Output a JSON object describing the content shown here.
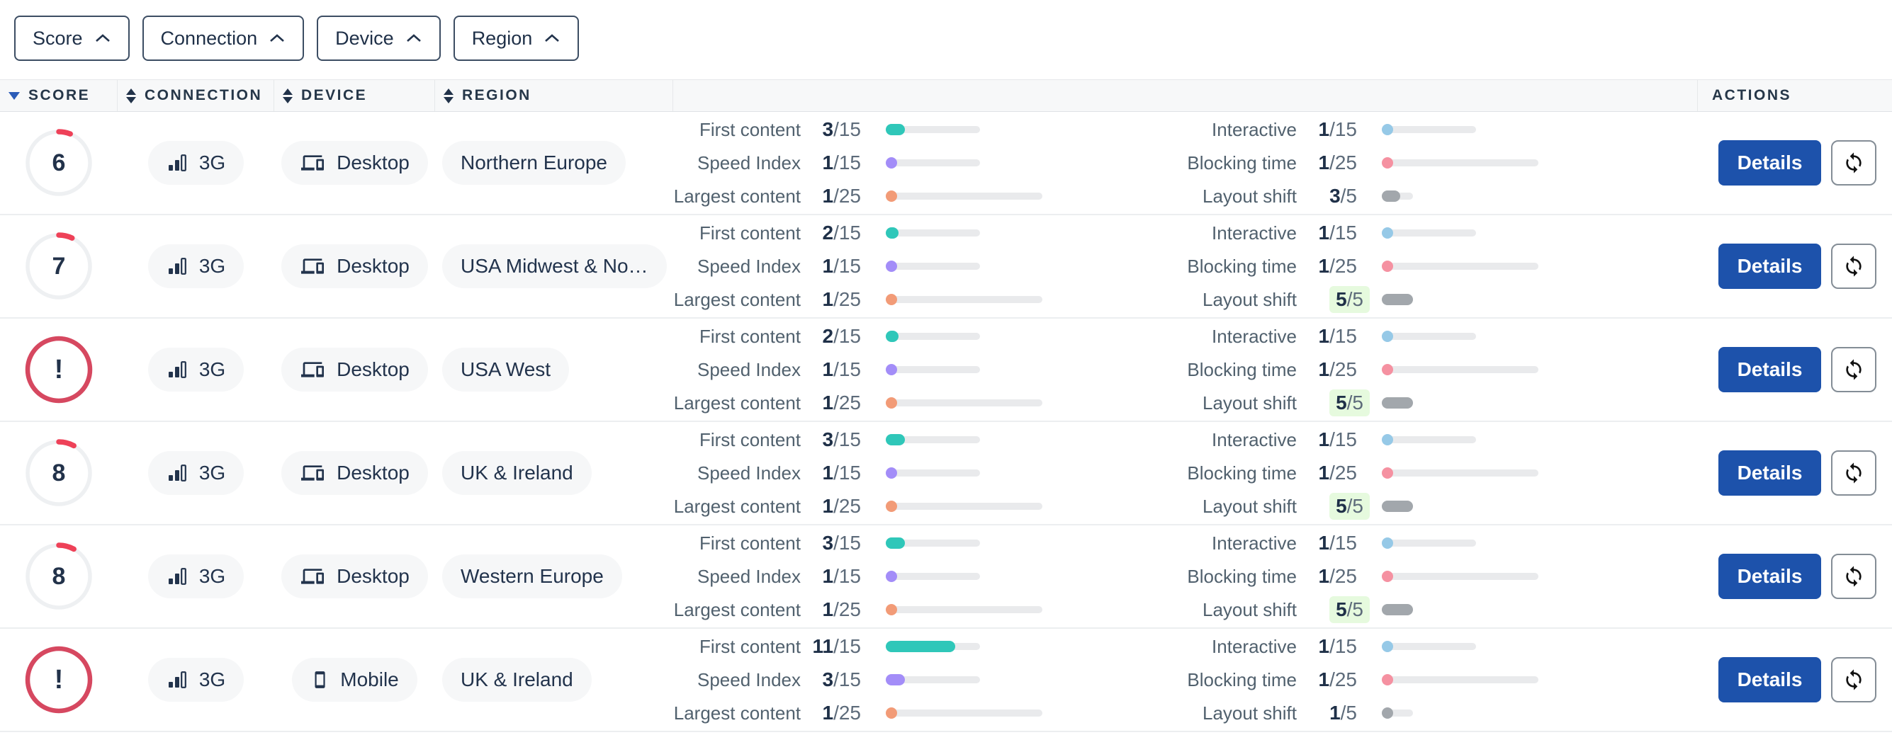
{
  "filters": {
    "items": [
      {
        "label": "Score",
        "icon": "chevron-up-icon"
      },
      {
        "label": "Connection",
        "icon": "chevron-up-icon"
      },
      {
        "label": "Device",
        "icon": "chevron-up-icon"
      },
      {
        "label": "Region",
        "icon": "chevron-up-icon"
      }
    ]
  },
  "header": {
    "score": {
      "label": "SCORE",
      "sort": "desc"
    },
    "connection": {
      "label": "CONNECTION",
      "sort": "both"
    },
    "device": {
      "label": "DEVICE",
      "sort": "both"
    },
    "region": {
      "label": "REGION",
      "sort": "both"
    },
    "actions": {
      "label": "ACTIONS"
    }
  },
  "actions": {
    "details_label": "Details",
    "refresh_icon": "sync-icon"
  },
  "colors": {
    "accent_blue": "#1d52ab",
    "score_arc": "#ee4158",
    "alert_ring": "#d64860",
    "score_track": "#eef0f2",
    "sort_active": "#2b5cb8",
    "badge_green_bg": "#e6fade",
    "bar_track": "#e9eaec",
    "teal": "#2fc7b9",
    "purple": "#a38df8",
    "salmon": "#f29b77",
    "light_blue": "#96c9e7",
    "pink": "#f591a1",
    "gray": "#a2a7ac"
  },
  "rows": [
    {
      "score": {
        "display": "6",
        "status": "score",
        "percent": 6
      },
      "connection": {
        "icon": "signal-bars-icon",
        "label": "3G"
      },
      "device": {
        "icon": "desktop-icon",
        "label": "Desktop"
      },
      "region": {
        "label": "Northern Europe"
      },
      "metrics_left": [
        {
          "label": "First content",
          "value": 3,
          "max": 15,
          "color": "#2fc7b9"
        },
        {
          "label": "Speed Index",
          "value": 1,
          "max": 15,
          "color": "#a38df8"
        },
        {
          "label": "Largest content",
          "value": 1,
          "max": 25,
          "color": "#f29b77"
        }
      ],
      "metrics_right": [
        {
          "label": "Interactive",
          "value": 1,
          "max": 15,
          "color": "#96c9e7"
        },
        {
          "label": "Blocking time",
          "value": 1,
          "max": 25,
          "color": "#f591a1"
        },
        {
          "label": "Layout shift",
          "value": 3,
          "max": 5,
          "color": "#a2a7ac",
          "highlight": false
        }
      ]
    },
    {
      "score": {
        "display": "7",
        "status": "score",
        "percent": 7
      },
      "connection": {
        "icon": "signal-bars-icon",
        "label": "3G"
      },
      "device": {
        "icon": "desktop-icon",
        "label": "Desktop"
      },
      "region": {
        "label": "USA Midwest & No…"
      },
      "metrics_left": [
        {
          "label": "First content",
          "value": 2,
          "max": 15,
          "color": "#2fc7b9"
        },
        {
          "label": "Speed Index",
          "value": 1,
          "max": 15,
          "color": "#a38df8"
        },
        {
          "label": "Largest content",
          "value": 1,
          "max": 25,
          "color": "#f29b77"
        }
      ],
      "metrics_right": [
        {
          "label": "Interactive",
          "value": 1,
          "max": 15,
          "color": "#96c9e7"
        },
        {
          "label": "Blocking time",
          "value": 1,
          "max": 25,
          "color": "#f591a1"
        },
        {
          "label": "Layout shift",
          "value": 5,
          "max": 5,
          "color": "#a2a7ac",
          "highlight": true
        }
      ]
    },
    {
      "score": {
        "display": "!",
        "status": "alert"
      },
      "connection": {
        "icon": "signal-bars-icon",
        "label": "3G"
      },
      "device": {
        "icon": "desktop-icon",
        "label": "Desktop"
      },
      "region": {
        "label": "USA West"
      },
      "metrics_left": [
        {
          "label": "First content",
          "value": 2,
          "max": 15,
          "color": "#2fc7b9"
        },
        {
          "label": "Speed Index",
          "value": 1,
          "max": 15,
          "color": "#a38df8"
        },
        {
          "label": "Largest content",
          "value": 1,
          "max": 25,
          "color": "#f29b77"
        }
      ],
      "metrics_right": [
        {
          "label": "Interactive",
          "value": 1,
          "max": 15,
          "color": "#96c9e7"
        },
        {
          "label": "Blocking time",
          "value": 1,
          "max": 25,
          "color": "#f591a1"
        },
        {
          "label": "Layout shift",
          "value": 5,
          "max": 5,
          "color": "#a2a7ac",
          "highlight": true
        }
      ]
    },
    {
      "score": {
        "display": "8",
        "status": "score",
        "percent": 8
      },
      "connection": {
        "icon": "signal-bars-icon",
        "label": "3G"
      },
      "device": {
        "icon": "desktop-icon",
        "label": "Desktop"
      },
      "region": {
        "label": "UK & Ireland"
      },
      "metrics_left": [
        {
          "label": "First content",
          "value": 3,
          "max": 15,
          "color": "#2fc7b9"
        },
        {
          "label": "Speed Index",
          "value": 1,
          "max": 15,
          "color": "#a38df8"
        },
        {
          "label": "Largest content",
          "value": 1,
          "max": 25,
          "color": "#f29b77"
        }
      ],
      "metrics_right": [
        {
          "label": "Interactive",
          "value": 1,
          "max": 15,
          "color": "#96c9e7"
        },
        {
          "label": "Blocking time",
          "value": 1,
          "max": 25,
          "color": "#f591a1"
        },
        {
          "label": "Layout shift",
          "value": 5,
          "max": 5,
          "color": "#a2a7ac",
          "highlight": true
        }
      ]
    },
    {
      "score": {
        "display": "8",
        "status": "score",
        "percent": 8
      },
      "connection": {
        "icon": "signal-bars-icon",
        "label": "3G"
      },
      "device": {
        "icon": "desktop-icon",
        "label": "Desktop"
      },
      "region": {
        "label": "Western Europe"
      },
      "metrics_left": [
        {
          "label": "First content",
          "value": 3,
          "max": 15,
          "color": "#2fc7b9"
        },
        {
          "label": "Speed Index",
          "value": 1,
          "max": 15,
          "color": "#a38df8"
        },
        {
          "label": "Largest content",
          "value": 1,
          "max": 25,
          "color": "#f29b77"
        }
      ],
      "metrics_right": [
        {
          "label": "Interactive",
          "value": 1,
          "max": 15,
          "color": "#96c9e7"
        },
        {
          "label": "Blocking time",
          "value": 1,
          "max": 25,
          "color": "#f591a1"
        },
        {
          "label": "Layout shift",
          "value": 5,
          "max": 5,
          "color": "#a2a7ac",
          "highlight": true
        }
      ]
    },
    {
      "score": {
        "display": "!",
        "status": "alert"
      },
      "connection": {
        "icon": "signal-bars-icon",
        "label": "3G"
      },
      "device": {
        "icon": "mobile-icon",
        "label": "Mobile"
      },
      "region": {
        "label": "UK & Ireland"
      },
      "metrics_left": [
        {
          "label": "First content",
          "value": 11,
          "max": 15,
          "color": "#2fc7b9"
        },
        {
          "label": "Speed Index",
          "value": 3,
          "max": 15,
          "color": "#a38df8"
        },
        {
          "label": "Largest content",
          "value": 1,
          "max": 25,
          "color": "#f29b77"
        }
      ],
      "metrics_right": [
        {
          "label": "Interactive",
          "value": 1,
          "max": 15,
          "color": "#96c9e7"
        },
        {
          "label": "Blocking time",
          "value": 1,
          "max": 25,
          "color": "#f591a1"
        },
        {
          "label": "Layout shift",
          "value": 1,
          "max": 5,
          "color": "#a2a7ac",
          "highlight": false
        }
      ]
    }
  ]
}
